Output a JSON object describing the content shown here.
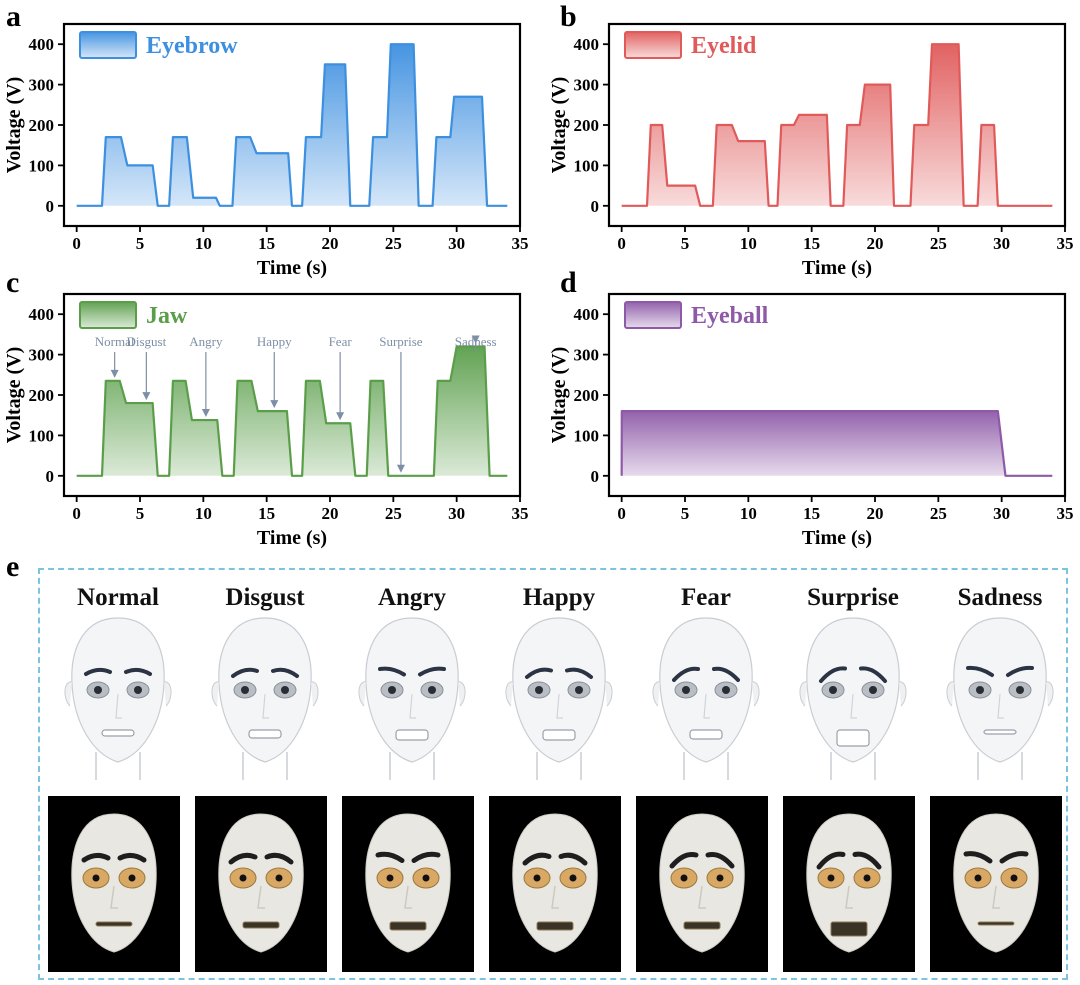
{
  "panel_labels": [
    "a",
    "b",
    "c",
    "d",
    "e"
  ],
  "colors": {
    "eyebrow": "#3d8fe0",
    "eyelid": "#e05a5a",
    "jaw": "#5a9e4a",
    "eyeball": "#8e5aa8",
    "annotation": "#7d8fa6",
    "panel_e_border": "#7cc4dd"
  },
  "chart_data": [
    {
      "type": "area",
      "panel": "a",
      "title": "",
      "legend": "Eyebrow",
      "xlabel": "Time (s)",
      "ylabel": "Voltage (V)",
      "xlim": [
        -1,
        35
      ],
      "ylim": [
        -50,
        450
      ],
      "xticks": [
        0,
        5,
        10,
        15,
        20,
        25,
        30,
        35
      ],
      "yticks": [
        0,
        100,
        200,
        300,
        400
      ],
      "x": [
        0,
        2,
        2.3,
        3.5,
        4,
        6,
        6.4,
        7.3,
        7.6,
        8.7,
        9.2,
        11,
        11.3,
        12.3,
        12.6,
        13.7,
        14.2,
        16.7,
        17,
        17.8,
        18.1,
        19.3,
        19.6,
        21.2,
        21.6,
        23.1,
        23.4,
        24.5,
        24.8,
        26.6,
        27,
        28.1,
        28.4,
        29.5,
        29.8,
        32,
        32.4,
        34
      ],
      "y": [
        0,
        0,
        170,
        170,
        100,
        100,
        0,
        0,
        170,
        170,
        20,
        20,
        0,
        0,
        170,
        170,
        130,
        130,
        0,
        0,
        170,
        170,
        350,
        350,
        0,
        0,
        170,
        170,
        400,
        400,
        0,
        0,
        170,
        170,
        270,
        270,
        0,
        0
      ]
    },
    {
      "type": "area",
      "panel": "b",
      "title": "",
      "legend": "Eyelid",
      "xlabel": "Time (s)",
      "ylabel": "Voltage (V)",
      "xlim": [
        -1,
        35
      ],
      "ylim": [
        -50,
        450
      ],
      "xticks": [
        0,
        5,
        10,
        15,
        20,
        25,
        30,
        35
      ],
      "yticks": [
        0,
        100,
        200,
        300,
        400
      ],
      "x": [
        0,
        2,
        2.3,
        3.2,
        3.6,
        5.8,
        6.2,
        7.2,
        7.5,
        8.7,
        9.2,
        11.3,
        11.6,
        12.3,
        12.6,
        13.6,
        14,
        16.2,
        16.5,
        17.5,
        17.8,
        18.8,
        19.2,
        21.2,
        21.5,
        22.8,
        23.1,
        24.2,
        24.5,
        26.6,
        27,
        28.1,
        28.4,
        29.4,
        29.7,
        34
      ],
      "y": [
        0,
        0,
        200,
        200,
        50,
        50,
        0,
        0,
        200,
        200,
        160,
        160,
        0,
        0,
        200,
        200,
        225,
        225,
        0,
        0,
        200,
        200,
        300,
        300,
        0,
        0,
        200,
        200,
        400,
        400,
        0,
        0,
        200,
        200,
        0,
        0
      ]
    },
    {
      "type": "area",
      "panel": "c",
      "title": "",
      "legend": "Jaw",
      "xlabel": "Time (s)",
      "ylabel": "Voltage (V)",
      "xlim": [
        -1,
        35
      ],
      "ylim": [
        -50,
        450
      ],
      "xticks": [
        0,
        5,
        10,
        15,
        20,
        25,
        30,
        35
      ],
      "yticks": [
        0,
        100,
        200,
        300,
        400
      ],
      "x": [
        0,
        2,
        2.3,
        3.4,
        3.9,
        6,
        6.4,
        7.3,
        7.6,
        8.6,
        9.1,
        11.1,
        11.5,
        12.4,
        12.7,
        13.8,
        14.3,
        16.6,
        17,
        17.8,
        18.1,
        19.2,
        19.7,
        21.6,
        22,
        22.9,
        23.2,
        24.2,
        24.6,
        25.1,
        28.2,
        28.5,
        29.5,
        30,
        32.2,
        32.6,
        34
      ],
      "y": [
        0,
        0,
        235,
        235,
        180,
        180,
        0,
        0,
        235,
        235,
        138,
        138,
        0,
        0,
        235,
        235,
        160,
        160,
        0,
        0,
        235,
        235,
        130,
        130,
        0,
        0,
        235,
        235,
        0,
        0,
        0,
        235,
        235,
        320,
        320,
        0,
        0
      ],
      "annotations": [
        {
          "text": "Normal",
          "x": 3.0,
          "y": 235
        },
        {
          "text": "Disgust",
          "x": 5.5,
          "y": 180
        },
        {
          "text": "Angry",
          "x": 10.2,
          "y": 138
        },
        {
          "text": "Happy",
          "x": 15.6,
          "y": 160
        },
        {
          "text": "Fear",
          "x": 20.8,
          "y": 130
        },
        {
          "text": "Surprise",
          "x": 25.6,
          "y": 0
        },
        {
          "text": "Sadness",
          "x": 31.5,
          "y": 320
        }
      ]
    },
    {
      "type": "area",
      "panel": "d",
      "title": "",
      "legend": "Eyeball",
      "xlabel": "Time (s)",
      "ylabel": "Voltage (V)",
      "xlim": [
        -1,
        35
      ],
      "ylim": [
        -50,
        450
      ],
      "xticks": [
        0,
        5,
        10,
        15,
        20,
        25,
        30,
        35
      ],
      "yticks": [
        0,
        100,
        200,
        300,
        400
      ],
      "x": [
        0,
        0.01,
        29.7,
        30.3,
        34
      ],
      "y": [
        0,
        160,
        160,
        0,
        0
      ]
    }
  ],
  "panel_e": {
    "expressions": [
      "Normal",
      "Disgust",
      "Angry",
      "Happy",
      "Fear",
      "Surprise",
      "Sadness"
    ]
  }
}
